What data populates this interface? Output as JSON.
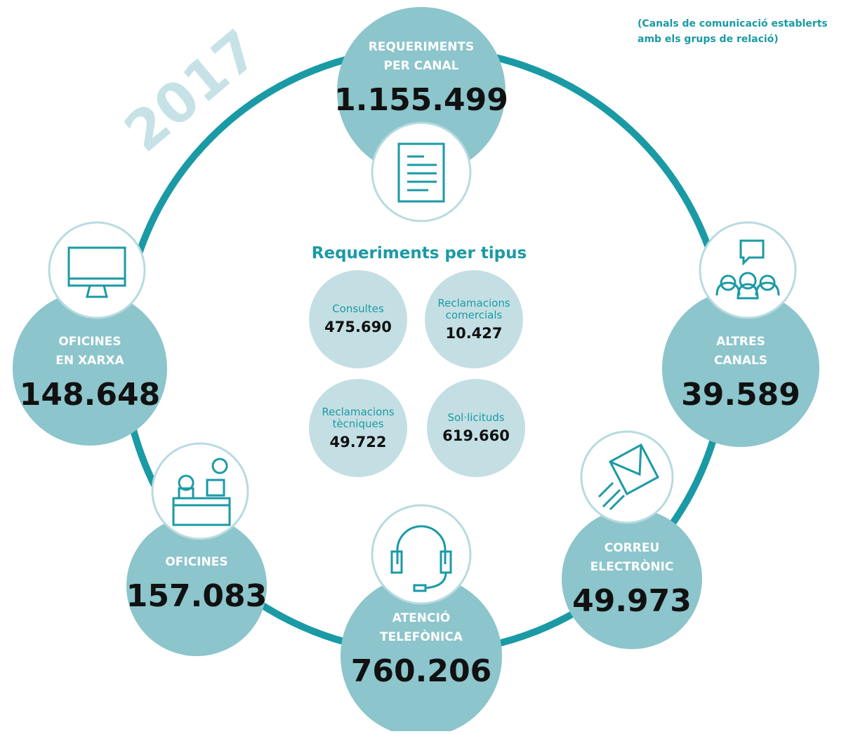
{
  "year": "2017",
  "note": [
    "(Canals de comunicació establerts",
    "amb els grups de relació)"
  ],
  "channels": [
    {
      "label": [
        "REQUERIMENTS",
        "PER CANAL"
      ],
      "value": "1.155.499"
    },
    {
      "label": [
        "OFICINES",
        "EN XARXA"
      ],
      "value": "148.648"
    },
    {
      "label": [
        "ALTRES",
        "CANALS"
      ],
      "value": "39.589"
    },
    {
      "label": [
        "OFICINES"
      ],
      "value": "157.083"
    },
    {
      "label": [
        "ATENCIÓ",
        "TELEFÒNICA"
      ],
      "value": "760.206"
    },
    {
      "label": [
        "CORREU",
        "ELECTRÒNIC"
      ],
      "value": "49.973"
    }
  ],
  "types_title": "Requeriments per tipus",
  "types": [
    {
      "label": [
        "Consultes"
      ],
      "value": "475.690"
    },
    {
      "label": [
        "Reclamacions",
        "comercials"
      ],
      "value": "10.427"
    },
    {
      "label": [
        "Reclamacions",
        "tècniques"
      ],
      "value": "49.722"
    },
    {
      "label": [
        "Sol·licituds"
      ],
      "value": "619.660"
    }
  ]
}
